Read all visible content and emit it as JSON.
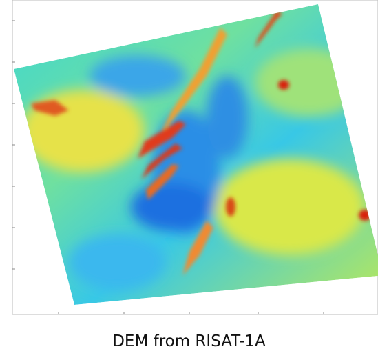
{
  "caption": "DEM from RISAT-1A"
}
